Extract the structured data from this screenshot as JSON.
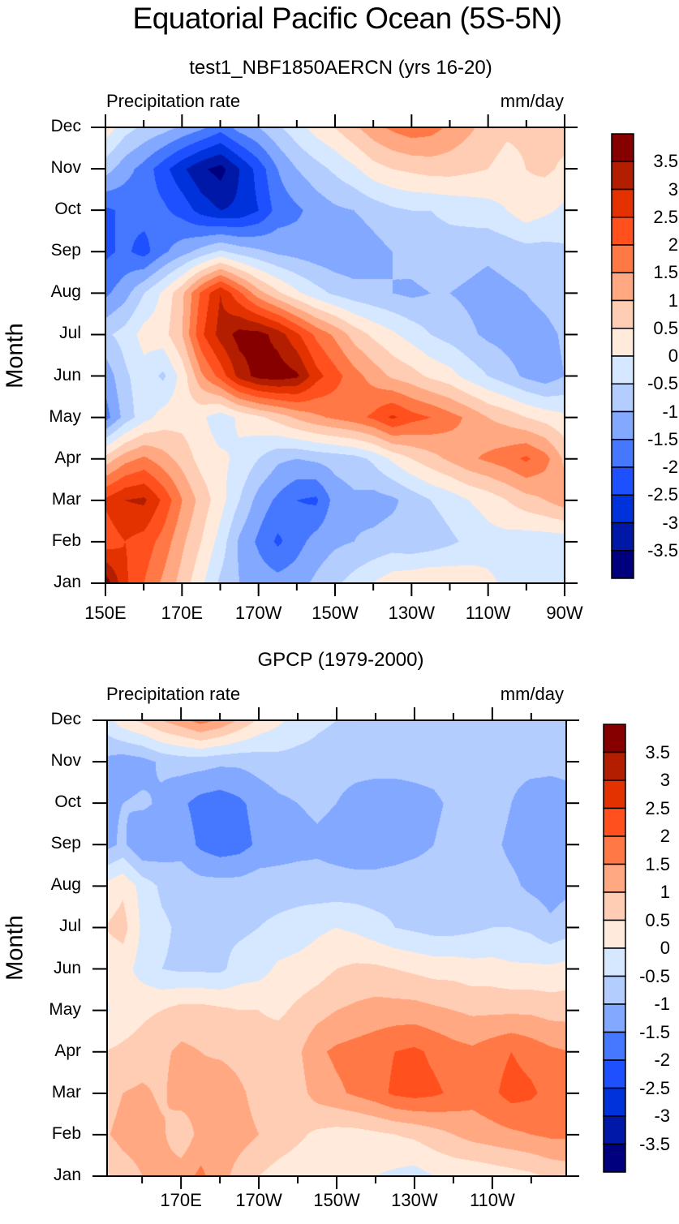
{
  "figure": {
    "title": "Equatorial Pacific Ocean (5S-5N)"
  },
  "colorbar": {
    "levels": [
      -3.5,
      -3,
      -2.5,
      -2,
      -1.5,
      -1,
      -0.5,
      0,
      0.5,
      1,
      1.5,
      2,
      2.5,
      3,
      3.5
    ],
    "tick_labels": [
      "3.5",
      "3",
      "2.5",
      "2",
      "1.5",
      "1",
      "0.5",
      "0",
      "-0.5",
      "-1",
      "-1.5",
      "-2",
      "-2.5",
      "-3",
      "-3.5"
    ],
    "colors": [
      "#00007f",
      "#0018a8",
      "#0032dc",
      "#1e50ff",
      "#4678ff",
      "#82a8ff",
      "#b4cdff",
      "#d6e8ff",
      "#ffeadb",
      "#ffcdb4",
      "#ffa882",
      "#ff7846",
      "#ff501e",
      "#e33200",
      "#b41e00",
      "#870000"
    ]
  },
  "chart_data": [
    {
      "type": "heatmap",
      "title": "test1_NBF1850AERCN (yrs 16-20)",
      "left_string": "Precipitation rate",
      "right_string": "mm/day",
      "xlabel": "",
      "ylabel": "Month",
      "x_tick_labels": [
        "150E",
        "170E",
        "170W",
        "150W",
        "130W",
        "110W",
        "90W"
      ],
      "x_tick_values": [
        150,
        170,
        190,
        210,
        230,
        250,
        270
      ],
      "xlim": [
        150,
        270
      ],
      "y_tick_labels": [
        "Jan",
        "Feb",
        "Mar",
        "Apr",
        "May",
        "Jun",
        "Jul",
        "Aug",
        "Sep",
        "Oct",
        "Nov",
        "Dec"
      ],
      "ylim": [
        1,
        12
      ],
      "units": "mm/day",
      "x": [
        150,
        155,
        160,
        165,
        170,
        175,
        180,
        185,
        190,
        195,
        200,
        205,
        210,
        215,
        220,
        225,
        230,
        235,
        240,
        245,
        250,
        255,
        260,
        265,
        270
      ],
      "y": [
        "Jan",
        "Feb",
        "Mar",
        "Apr",
        "May",
        "Jun",
        "Jul",
        "Aug",
        "Sep",
        "Oct",
        "Nov",
        "Dec"
      ],
      "z": [
        [
          3.8,
          2.6,
          2.0,
          1.4,
          0.8,
          0.1,
          -0.6,
          -1.0,
          -1.2,
          -1.3,
          -1.2,
          -0.9,
          -0.6,
          -0.3,
          0.0,
          0.3,
          0.4,
          0.5,
          0.4,
          0.3,
          0.1,
          -0.1,
          -0.2,
          -0.3,
          -0.3
        ],
        [
          2.2,
          2.5,
          2.3,
          1.8,
          1.1,
          0.5,
          -0.2,
          -1.1,
          -1.6,
          -2.1,
          -1.7,
          -1.3,
          -1.1,
          -1.0,
          -0.9,
          -0.8,
          -0.9,
          -0.8,
          -0.6,
          -0.4,
          -0.2,
          -0.2,
          -0.3,
          -0.3,
          -0.3
        ],
        [
          2.6,
          3.0,
          3.1,
          2.4,
          1.5,
          0.8,
          0.2,
          -0.5,
          -1.2,
          -1.6,
          -2.0,
          -2.1,
          -1.3,
          -1.1,
          -1.2,
          -1.1,
          -0.8,
          -0.5,
          -0.3,
          0.0,
          0.2,
          0.5,
          0.8,
          1.0,
          1.3
        ],
        [
          0.7,
          1.3,
          1.6,
          1.2,
          0.8,
          0.3,
          0.1,
          -0.1,
          -0.5,
          -0.9,
          -1.0,
          -0.9,
          -0.8,
          -0.7,
          -0.4,
          0.1,
          0.5,
          0.8,
          1.1,
          1.4,
          1.6,
          1.8,
          2.1,
          1.7,
          0.9
        ],
        [
          -1.7,
          -0.8,
          -0.2,
          0.2,
          0.3,
          0.1,
          -0.3,
          0.1,
          0.4,
          0.7,
          1.1,
          1.4,
          1.6,
          1.8,
          2.1,
          2.6,
          2.2,
          2.0,
          1.7,
          1.4,
          1.0,
          0.8,
          0.5,
          0.3,
          0.1
        ],
        [
          -1.3,
          -0.6,
          -0.2,
          -0.6,
          0.2,
          1.4,
          2.2,
          3.2,
          3.7,
          3.8,
          3.6,
          2.7,
          2.2,
          1.7,
          1.3,
          0.9,
          0.7,
          0.4,
          0.2,
          -0.2,
          -0.5,
          -0.8,
          -1.1,
          -1.3,
          -1.0
        ],
        [
          -0.6,
          -0.3,
          0.2,
          0.3,
          1.0,
          2.4,
          3.2,
          3.7,
          3.7,
          3.3,
          2.6,
          1.9,
          1.4,
          0.8,
          0.4,
          0.1,
          -0.2,
          -0.5,
          -0.7,
          -0.9,
          -1.1,
          -1.2,
          -1.3,
          -1.2,
          -0.9
        ],
        [
          -1.6,
          -1.2,
          -0.5,
          0.1,
          0.9,
          2.1,
          3.0,
          2.1,
          1.2,
          0.6,
          0.1,
          -0.3,
          -0.6,
          -0.8,
          -0.9,
          -1.0,
          -1.1,
          -1.0,
          -1.0,
          -1.1,
          -1.2,
          -1.1,
          -1.0,
          -0.8,
          -0.6
        ],
        [
          -2.1,
          -1.9,
          -2.2,
          -1.6,
          -1.2,
          -0.8,
          -0.4,
          -0.7,
          -0.9,
          -1.1,
          -1.2,
          -1.3,
          -1.4,
          -1.4,
          -1.2,
          -1.0,
          -0.8,
          -0.7,
          -0.7,
          -0.8,
          -0.9,
          -0.8,
          -0.7,
          -0.7,
          -0.6
        ],
        [
          -2.1,
          -1.9,
          -1.8,
          -1.9,
          -2.2,
          -2.7,
          -3.0,
          -2.9,
          -2.5,
          -1.8,
          -1.6,
          -1.3,
          -1.1,
          -1.0,
          -0.8,
          -0.6,
          -0.5,
          -0.5,
          -0.4,
          -0.3,
          -0.2,
          0.0,
          0.3,
          0.1,
          -0.1
        ],
        [
          -0.8,
          -1.3,
          -1.7,
          -2.3,
          -2.9,
          -3.4,
          -3.7,
          -3.0,
          -2.3,
          -1.5,
          -1.0,
          -0.7,
          -0.4,
          -0.1,
          0.3,
          0.5,
          0.6,
          0.7,
          0.7,
          0.6,
          0.5,
          0.3,
          0.5,
          0.6,
          0.4
        ],
        [
          0.3,
          -0.3,
          -0.6,
          -0.8,
          -1.1,
          -1.4,
          -1.8,
          -1.3,
          -1.0,
          -0.6,
          -0.2,
          0.2,
          0.5,
          0.9,
          1.3,
          1.6,
          1.8,
          1.7,
          1.4,
          1.1,
          0.8,
          0.6,
          0.6,
          0.7,
          0.7
        ]
      ]
    },
    {
      "type": "heatmap",
      "title": "GPCP (1979-2000)",
      "left_string": "Precipitation rate",
      "right_string": "mm/day",
      "xlabel": "",
      "ylabel": "Month",
      "x_tick_labels": [
        "170E",
        "170W",
        "150W",
        "130W",
        "110W"
      ],
      "x_tick_values": [
        170,
        190,
        210,
        230,
        250
      ],
      "xlim": [
        151,
        269
      ],
      "y_tick_labels": [
        "Jan",
        "Feb",
        "Mar",
        "Apr",
        "May",
        "Jun",
        "Jul",
        "Aug",
        "Sep",
        "Oct",
        "Nov",
        "Dec"
      ],
      "ylim": [
        1,
        12
      ],
      "units": "mm/day",
      "x": [
        150,
        155,
        160,
        165,
        170,
        175,
        180,
        185,
        190,
        195,
        200,
        205,
        210,
        215,
        220,
        225,
        230,
        235,
        240,
        245,
        250,
        255,
        260,
        265,
        270
      ],
      "y": [
        "Jan",
        "Feb",
        "Mar",
        "Apr",
        "May",
        "Jun",
        "Jul",
        "Aug",
        "Sep",
        "Oct",
        "Nov",
        "Dec"
      ],
      "z": [
        [
          0.4,
          0.7,
          1.0,
          1.2,
          1.3,
          1.6,
          1.2,
          0.8,
          0.5,
          0.3,
          0.2,
          0.1,
          0.1,
          0.1,
          0.0,
          -0.1,
          -0.2,
          0.0,
          0.1,
          0.1,
          0.2,
          0.3,
          0.4,
          0.6,
          0.7
        ],
        [
          0.9,
          1.2,
          1.3,
          1.1,
          0.6,
          1.2,
          1.3,
          1.2,
          1.0,
          0.8,
          0.6,
          0.4,
          0.3,
          0.3,
          0.4,
          0.5,
          0.6,
          0.8,
          1.0,
          1.2,
          1.3,
          1.4,
          1.5,
          1.6,
          1.6
        ],
        [
          0.7,
          1.0,
          1.1,
          0.9,
          1.3,
          1.2,
          1.4,
          1.1,
          0.8,
          0.7,
          0.8,
          1.2,
          1.4,
          1.6,
          1.8,
          2.1,
          2.2,
          2.1,
          1.9,
          1.7,
          1.9,
          2.2,
          2.1,
          1.8,
          1.6
        ],
        [
          0.5,
          0.6,
          0.7,
          0.9,
          1.1,
          1.0,
          0.9,
          0.8,
          0.7,
          0.8,
          0.9,
          1.4,
          1.6,
          1.7,
          1.8,
          2.0,
          2.1,
          1.9,
          1.7,
          1.6,
          1.8,
          2.0,
          1.8,
          1.6,
          1.5
        ],
        [
          -0.1,
          0.2,
          0.4,
          0.5,
          0.7,
          0.7,
          0.6,
          0.5,
          0.5,
          0.4,
          0.6,
          0.8,
          1.0,
          1.1,
          1.2,
          1.2,
          1.2,
          1.1,
          1.0,
          0.9,
          0.9,
          0.9,
          0.9,
          0.8,
          0.8
        ],
        [
          0.1,
          0.2,
          -0.2,
          -0.5,
          -0.6,
          -0.6,
          -0.6,
          -0.3,
          -0.2,
          0.1,
          0.2,
          0.3,
          0.5,
          0.6,
          0.6,
          0.5,
          0.4,
          0.3,
          0.3,
          0.2,
          0.2,
          0.1,
          0.1,
          0.1,
          0.2
        ],
        [
          0.5,
          0.7,
          -0.1,
          -0.4,
          -0.6,
          -0.6,
          -0.6,
          -0.6,
          -0.5,
          -0.4,
          -0.3,
          -0.1,
          0.0,
          -0.1,
          -0.3,
          -0.5,
          -0.6,
          -0.7,
          -0.7,
          -0.6,
          -0.5,
          -0.5,
          -0.6,
          -0.9,
          -0.7
        ],
        [
          0.1,
          0.4,
          -0.2,
          -0.6,
          -0.7,
          -0.8,
          -0.8,
          -0.8,
          -0.7,
          -0.7,
          -0.7,
          -0.8,
          -0.8,
          -0.8,
          -0.8,
          -0.7,
          -0.6,
          -0.6,
          -0.7,
          -0.8,
          -0.8,
          -0.9,
          -1.1,
          -1.2,
          -1.1
        ],
        [
          -1.2,
          -0.9,
          -1.5,
          -1.3,
          -1.2,
          -1.6,
          -1.8,
          -1.7,
          -1.4,
          -1.3,
          -1.2,
          -1.1,
          -1.2,
          -1.3,
          -1.3,
          -1.3,
          -1.2,
          -1.0,
          -0.8,
          -0.8,
          -0.9,
          -1.1,
          -1.2,
          -1.2,
          -1.1
        ],
        [
          -1.1,
          -1.0,
          -0.9,
          -1.1,
          -1.4,
          -1.7,
          -1.8,
          -1.6,
          -1.3,
          -1.1,
          -1.0,
          -0.9,
          -1.0,
          -1.2,
          -1.3,
          -1.3,
          -1.2,
          -1.1,
          -0.9,
          -0.8,
          -0.8,
          -1.0,
          -1.3,
          -1.2,
          -1.1
        ],
        [
          -1.1,
          -1.3,
          -1.2,
          -0.9,
          -0.8,
          -0.8,
          -0.9,
          -0.9,
          -0.8,
          -0.7,
          -0.7,
          -0.7,
          -0.8,
          -0.8,
          -0.8,
          -0.8,
          -0.8,
          -0.8,
          -0.7,
          -0.7,
          -0.8,
          -0.8,
          -0.8,
          -0.9,
          -0.9
        ],
        [
          -0.3,
          0.3,
          0.6,
          1.0,
          1.3,
          1.7,
          1.4,
          0.9,
          0.4,
          0.1,
          -0.2,
          -0.4,
          -0.5,
          -0.5,
          -0.6,
          -0.6,
          -0.6,
          -0.7,
          -0.7,
          -0.7,
          -0.7,
          -0.7,
          -0.7,
          -0.7,
          -0.7
        ]
      ]
    }
  ]
}
